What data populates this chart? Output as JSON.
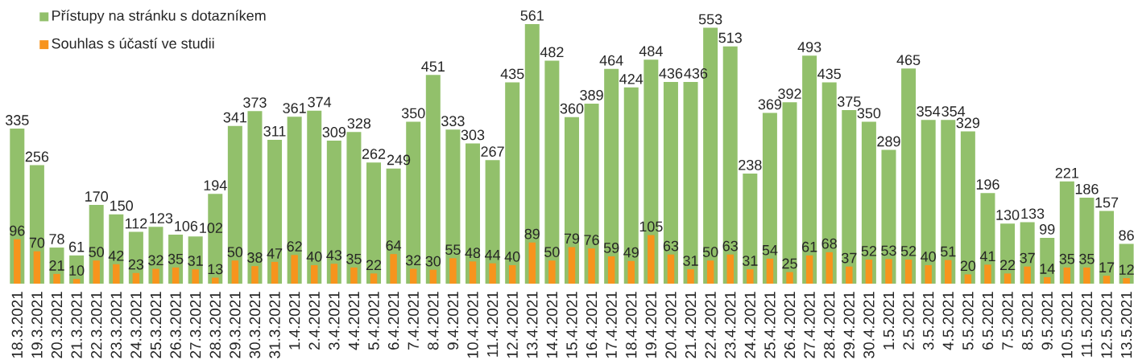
{
  "chart_data": {
    "type": "bar",
    "categories": [
      "18.3.2021",
      "19.3.2021",
      "20.3.2021",
      "21.3.2021",
      "22.3.2021",
      "23.3.2021",
      "24.3.2021",
      "25.3.2021",
      "26.3.2021",
      "27.3.2021",
      "28.3.2021",
      "29.3.2021",
      "30.3.2021",
      "31.3.2021",
      "1.4.2021",
      "2.4.2021",
      "3.4.2021",
      "4.4.2021",
      "5.4.2021",
      "6.4.2021",
      "7.4.2021",
      "8.4.2021",
      "9.4.2021",
      "10.4.2021",
      "11.4.2021",
      "12.4.2021",
      "13.4.2021",
      "14.4.2021",
      "15.4.2021",
      "16.4.2021",
      "17.4.2021",
      "18.4.2021",
      "19.4.2021",
      "20.4.2021",
      "21.4.2021",
      "22.4.2021",
      "23.4.2021",
      "24.4.2021",
      "25.4.2021",
      "26.4.2021",
      "27.4.2021",
      "28.4.2021",
      "29.4.2021",
      "30.4.2021",
      "1.5.2021",
      "2.5.2021",
      "3.5.2021",
      "4.5.2021",
      "5.5.2021",
      "6.5.2021",
      "7.5.2021",
      "8.5.2021",
      "9.5.2021",
      "10.5.2021",
      "11.5.2021",
      "12.5.2021",
      "13.5.2021"
    ],
    "series": [
      {
        "name": "Přístupy na stránku s dotazníkem",
        "color": "#92c06b",
        "values": [
          335,
          256,
          78,
          61,
          170,
          150,
          112,
          123,
          106,
          102,
          194,
          341,
          373,
          311,
          361,
          374,
          309,
          328,
          262,
          249,
          350,
          451,
          333,
          303,
          267,
          435,
          561,
          482,
          360,
          389,
          464,
          424,
          484,
          436,
          436,
          553,
          513,
          238,
          369,
          392,
          493,
          435,
          375,
          350,
          289,
          465,
          354,
          354,
          329,
          196,
          130,
          133,
          99,
          221,
          186,
          157,
          86
        ]
      },
      {
        "name": "Souhlas s účastí ve studii",
        "color": "#f7941d",
        "values": [
          96,
          70,
          21,
          10,
          50,
          42,
          23,
          32,
          35,
          31,
          13,
          50,
          38,
          47,
          62,
          40,
          43,
          35,
          22,
          64,
          32,
          30,
          55,
          48,
          44,
          40,
          89,
          50,
          79,
          76,
          59,
          49,
          105,
          63,
          31,
          50,
          63,
          31,
          54,
          25,
          61,
          68,
          37,
          52,
          53,
          52,
          40,
          51,
          20,
          41,
          22,
          37,
          14,
          35,
          35,
          17,
          12
        ]
      }
    ],
    "data_labels": true,
    "legend": "top left",
    "tick_labels": "x"
  }
}
